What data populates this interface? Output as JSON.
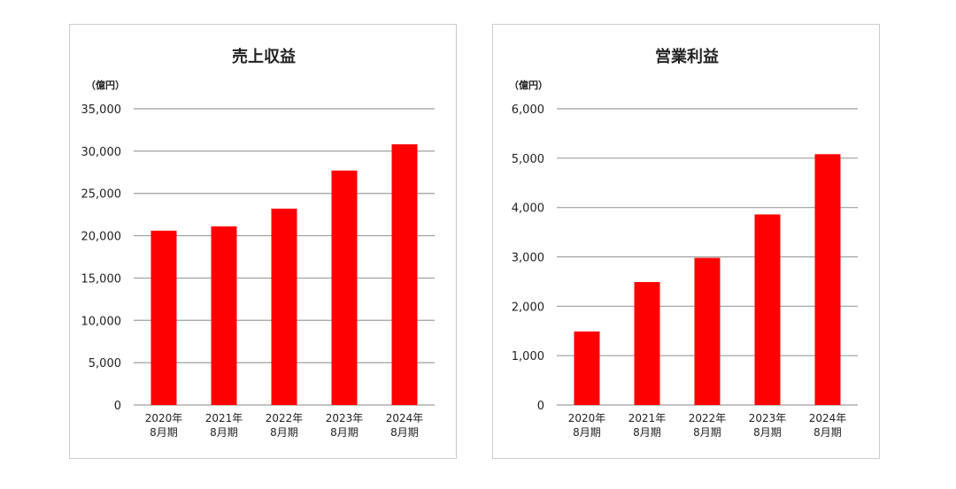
{
  "chart_data": [
    {
      "type": "bar",
      "title": "売上収益",
      "unit": "（億円）",
      "categories": [
        [
          "2020年",
          "8月期"
        ],
        [
          "2021年",
          "8月期"
        ],
        [
          "2022年",
          "8月期"
        ],
        [
          "2023年",
          "8月期"
        ],
        [
          "2024年",
          "8月期"
        ]
      ],
      "values": [
        20600,
        21100,
        23200,
        27700,
        30800
      ],
      "ylim": [
        0,
        35000
      ],
      "yticks": [
        0,
        5000,
        10000,
        15000,
        20000,
        25000,
        30000,
        35000
      ],
      "ytick_labels": [
        "0",
        "5,000",
        "10,000",
        "15,000",
        "20,000",
        "25,000",
        "30,000",
        "35,000"
      ],
      "grid": true,
      "bar_color": "#ff0000",
      "grid_color": "#9e9e9e"
    },
    {
      "type": "bar",
      "title": "営業利益",
      "unit": "（億円）",
      "categories": [
        [
          "2020年",
          "8月期"
        ],
        [
          "2021年",
          "8月期"
        ],
        [
          "2022年",
          "8月期"
        ],
        [
          "2023年",
          "8月期"
        ],
        [
          "2024年",
          "8月期"
        ]
      ],
      "values": [
        1490,
        2490,
        2980,
        3860,
        5080
      ],
      "ylim": [
        0,
        6000
      ],
      "yticks": [
        0,
        1000,
        2000,
        3000,
        4000,
        5000,
        6000
      ],
      "ytick_labels": [
        "0",
        "1,000",
        "2,000",
        "3,000",
        "4,000",
        "5,000",
        "6,000"
      ],
      "grid": true,
      "bar_color": "#ff0000",
      "grid_color": "#9e9e9e"
    }
  ]
}
